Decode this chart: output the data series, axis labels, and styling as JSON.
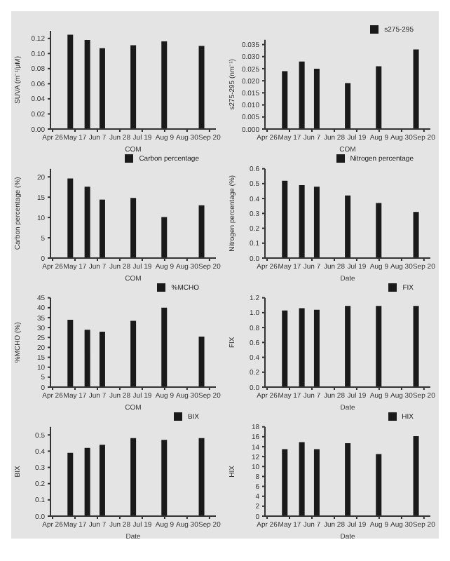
{
  "chart_data": [
    {
      "type": "bar",
      "ylabel": "SUVA (m⁻¹/μM)",
      "xlabel": "COM",
      "x": [
        "--05-13",
        "--05-29",
        "--06-12",
        "--07-11",
        "--08-09",
        "--09-13"
      ],
      "values": [
        0.125,
        0.118,
        0.107,
        0.111,
        0.116,
        0.11
      ],
      "color": "#1a1a1a",
      "xlim": [
        "--04-24",
        "--09-26"
      ],
      "xticks": [
        {
          "value": "--04-26",
          "label": "Apr 26"
        },
        {
          "value": "--05-17",
          "label": "May 17"
        },
        {
          "value": "--06-07",
          "label": "Jun 7"
        },
        {
          "value": "--06-28",
          "label": "Jun 28"
        },
        {
          "value": "--07-19",
          "label": "Jul 19"
        },
        {
          "value": "--08-09",
          "label": "Aug 9"
        },
        {
          "value": "--08-30",
          "label": "Aug 30"
        },
        {
          "value": "--09-20",
          "label": "Sep 20"
        }
      ],
      "ylim": [
        0,
        0.13
      ],
      "yticks": [
        {
          "value": 0,
          "label": "0.00"
        },
        {
          "value": 0.02,
          "label": "0.02"
        },
        {
          "value": 0.04,
          "label": "0.04"
        },
        {
          "value": 0.06,
          "label": "0.06"
        },
        {
          "value": 0.08,
          "label": "0.08"
        },
        {
          "value": 0.1,
          "label": "0.10"
        },
        {
          "value": 0.12,
          "label": "0.12"
        }
      ]
    },
    {
      "type": "bar",
      "ylabel": "s275-295 (nm⁻¹)",
      "xlabel": "COM",
      "x": [
        "--05-13",
        "--05-29",
        "--06-12",
        "--07-11",
        "--08-09",
        "--09-13"
      ],
      "series": [
        {
          "name": "s275-295",
          "color": "#1a1a1a",
          "values": [
            0.024,
            0.028,
            0.025,
            0.019,
            0.026,
            0.033
          ]
        }
      ],
      "legend": "top right",
      "xlim": [
        "--04-24",
        "--09-26"
      ],
      "xticks": [
        {
          "value": "--04-26",
          "label": "Apr 26"
        },
        {
          "value": "--05-17",
          "label": "May 17"
        },
        {
          "value": "--06-07",
          "label": "Jun 7"
        },
        {
          "value": "--06-28",
          "label": "Jun 28"
        },
        {
          "value": "--07-19",
          "label": "Jul 19"
        },
        {
          "value": "--08-09",
          "label": "Aug 9"
        },
        {
          "value": "--08-30",
          "label": "Aug 30"
        },
        {
          "value": "--09-20",
          "label": "Sep 20"
        }
      ],
      "ylim": [
        0,
        0.037
      ],
      "yticks": [
        {
          "value": 0,
          "label": "0.000"
        },
        {
          "value": 0.005,
          "label": "0.005"
        },
        {
          "value": 0.01,
          "label": "0.010"
        },
        {
          "value": 0.015,
          "label": "0.015"
        },
        {
          "value": 0.02,
          "label": "0.020"
        },
        {
          "value": 0.025,
          "label": "0.025"
        },
        {
          "value": 0.03,
          "label": "0.030"
        },
        {
          "value": 0.035,
          "label": "0.035"
        }
      ]
    },
    {
      "type": "bar",
      "ylabel": "Carbon percentage (%)",
      "xlabel": "COM",
      "x": [
        "--05-13",
        "--05-29",
        "--06-12",
        "--07-11",
        "--08-09",
        "--09-13"
      ],
      "series": [
        {
          "name": "Carbon percentage",
          "color": "#1a1a1a",
          "values": [
            19.6,
            17.6,
            14.4,
            14.8,
            10.1,
            13.0
          ]
        }
      ],
      "legend": "top right",
      "xlim": [
        "--04-24",
        "--09-26"
      ],
      "xticks": [
        {
          "value": "--04-26",
          "label": "Apr 26"
        },
        {
          "value": "--05-17",
          "label": "May 17"
        },
        {
          "value": "--06-07",
          "label": "Jun 7"
        },
        {
          "value": "--06-28",
          "label": "Jun 28"
        },
        {
          "value": "--07-19",
          "label": "Jul 19"
        },
        {
          "value": "--08-09",
          "label": "Aug 9"
        },
        {
          "value": "--08-30",
          "label": "Aug 30"
        },
        {
          "value": "--09-20",
          "label": "Sep 20"
        }
      ],
      "ylim": [
        0,
        22
      ],
      "yticks": [
        0,
        5,
        10,
        15,
        20
      ]
    },
    {
      "type": "bar",
      "ylabel": "Nitrogen percentage (%)",
      "xlabel": "Date",
      "x": [
        "--05-13",
        "--05-29",
        "--06-12",
        "--07-11",
        "--08-09",
        "--09-13"
      ],
      "series": [
        {
          "name": "Nitrogen percentage",
          "color": "#1a1a1a",
          "values": [
            0.52,
            0.49,
            0.48,
            0.42,
            0.37,
            0.31
          ]
        }
      ],
      "legend": "top right",
      "xlim": [
        "--04-24",
        "--09-26"
      ],
      "xticks": [
        {
          "value": "--04-26",
          "label": "Apr 26"
        },
        {
          "value": "--05-17",
          "label": "May 17"
        },
        {
          "value": "--06-07",
          "label": "Jun 7"
        },
        {
          "value": "--06-28",
          "label": "Jun 28"
        },
        {
          "value": "--07-19",
          "label": "Jul 19"
        },
        {
          "value": "--08-09",
          "label": "Aug 9"
        },
        {
          "value": "--08-30",
          "label": "Aug 30"
        },
        {
          "value": "--09-20",
          "label": "Sep 20"
        }
      ],
      "ylim": [
        0,
        0.6
      ],
      "yticks": [
        {
          "value": 0,
          "label": "0.0"
        },
        0.1,
        0.2,
        0.3,
        0.4,
        0.5,
        0.6
      ]
    },
    {
      "type": "bar",
      "ylabel": "%MCHO (%)",
      "xlabel": "COM",
      "x": [
        "--05-13",
        "--05-29",
        "--06-12",
        "--07-11",
        "--08-09",
        "--09-13"
      ],
      "series": [
        {
          "name": "%MCHO",
          "color": "#1a1a1a",
          "values": [
            33.9,
            28.9,
            27.9,
            33.4,
            40.0,
            25.4
          ]
        }
      ],
      "legend": "top right",
      "xlim": [
        "--04-24",
        "--09-26"
      ],
      "xticks": [
        {
          "value": "--04-26",
          "label": "Apr 26"
        },
        {
          "value": "--05-17",
          "label": "May 17"
        },
        {
          "value": "--06-07",
          "label": "Jun 7"
        },
        {
          "value": "--06-28",
          "label": "Jun 28"
        },
        {
          "value": "--07-19",
          "label": "Jul 19"
        },
        {
          "value": "--08-09",
          "label": "Aug 9"
        },
        {
          "value": "--08-30",
          "label": "Aug 30"
        },
        {
          "value": "--09-20",
          "label": "Sep 20"
        }
      ],
      "ylim": [
        0,
        45
      ],
      "yticks": [
        0,
        5,
        10,
        15,
        20,
        25,
        30,
        35,
        40,
        45
      ]
    },
    {
      "type": "bar",
      "ylabel": "FIX",
      "xlabel": "Date",
      "x": [
        "--05-13",
        "--05-29",
        "--06-12",
        "--07-11",
        "--08-09",
        "--09-13"
      ],
      "series": [
        {
          "name": "FIX",
          "color": "#1a1a1a",
          "values": [
            1.03,
            1.06,
            1.04,
            1.09,
            1.09,
            1.09
          ]
        }
      ],
      "legend": "top right",
      "xlim": [
        "--04-24",
        "--09-26"
      ],
      "xticks": [
        {
          "value": "--04-26",
          "label": "Apr 26"
        },
        {
          "value": "--05-17",
          "label": "May 17"
        },
        {
          "value": "--06-07",
          "label": "Jun 7"
        },
        {
          "value": "--06-28",
          "label": "Jun 28"
        },
        {
          "value": "--07-19",
          "label": "Jul 19"
        },
        {
          "value": "--08-09",
          "label": "Aug 9"
        },
        {
          "value": "--08-30",
          "label": "Aug 30"
        },
        {
          "value": "--09-20",
          "label": "Sep 20"
        }
      ],
      "ylim": [
        0,
        1.2
      ],
      "yticks": [
        {
          "value": 0,
          "label": "0.0"
        },
        0.2,
        0.4,
        0.6,
        0.8,
        {
          "value": 1,
          "label": "1.0"
        },
        1.2
      ]
    },
    {
      "type": "bar",
      "ylabel": "BIX",
      "xlabel": "Date",
      "x": [
        "--05-13",
        "--05-29",
        "--06-12",
        "--07-11",
        "--08-09",
        "--09-13"
      ],
      "series": [
        {
          "name": "BIX",
          "color": "#1a1a1a",
          "values": [
            0.39,
            0.42,
            0.44,
            0.48,
            0.47,
            0.48
          ]
        }
      ],
      "legend": "top right",
      "xlim": [
        "--04-24",
        "--09-26"
      ],
      "xticks": [
        {
          "value": "--04-26",
          "label": "Apr 26"
        },
        {
          "value": "--05-17",
          "label": "May 17"
        },
        {
          "value": "--06-07",
          "label": "Jun 7"
        },
        {
          "value": "--06-28",
          "label": "Jun 28"
        },
        {
          "value": "--07-19",
          "label": "Jul 19"
        },
        {
          "value": "--08-09",
          "label": "Aug 9"
        },
        {
          "value": "--08-30",
          "label": "Aug 30"
        },
        {
          "value": "--09-20",
          "label": "Sep 20"
        }
      ],
      "ylim": [
        0,
        0.55
      ],
      "yticks": [
        {
          "value": 0,
          "label": "0.0"
        },
        0.1,
        0.2,
        0.3,
        0.4,
        0.5
      ]
    },
    {
      "type": "bar",
      "ylabel": "HIX",
      "xlabel": "Date",
      "x": [
        "--05-13",
        "--05-29",
        "--06-12",
        "--07-11",
        "--08-09",
        "--09-13"
      ],
      "series": [
        {
          "name": "HIX",
          "color": "#1a1a1a",
          "values": [
            13.5,
            14.9,
            13.5,
            14.7,
            12.5,
            16.1
          ]
        }
      ],
      "legend": "top right",
      "xlim": [
        "--04-24",
        "--09-26"
      ],
      "xticks": [
        {
          "value": "--04-26",
          "label": "Apr 26"
        },
        {
          "value": "--05-17",
          "label": "May 17"
        },
        {
          "value": "--06-07",
          "label": "Jun 7"
        },
        {
          "value": "--06-28",
          "label": "Jun 28"
        },
        {
          "value": "--07-19",
          "label": "Jul 19"
        },
        {
          "value": "--08-09",
          "label": "Aug 9"
        },
        {
          "value": "--08-30",
          "label": "Aug 30"
        },
        {
          "value": "--09-20",
          "label": "Sep 20"
        }
      ],
      "ylim": [
        0,
        18
      ],
      "yticks": [
        0,
        2,
        4,
        6,
        8,
        10,
        12,
        14,
        16,
        18
      ]
    }
  ]
}
